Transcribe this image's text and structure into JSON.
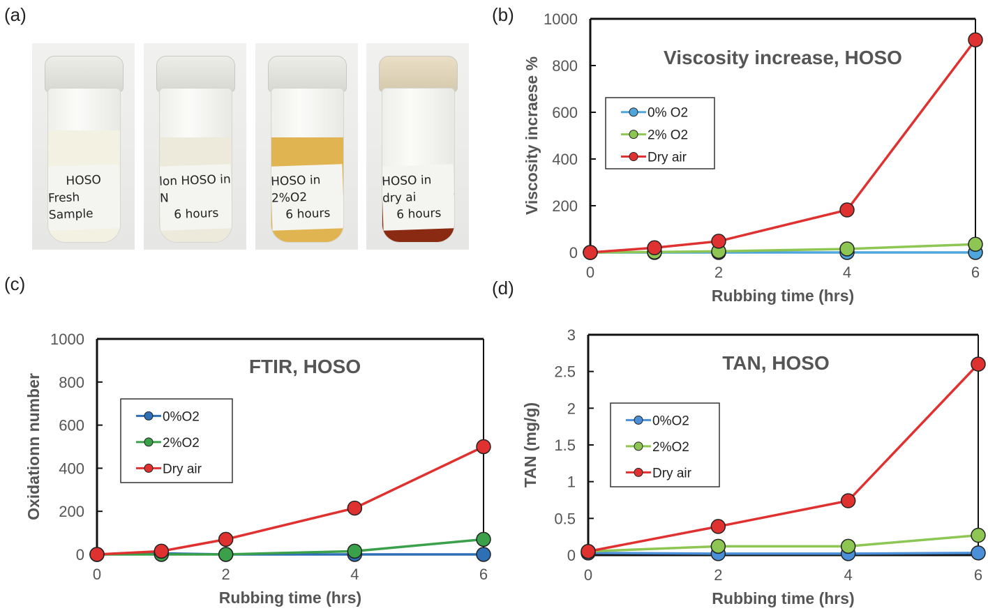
{
  "panels": {
    "a": "(a)",
    "b": "(b)",
    "c": "(c)",
    "d": "(d)"
  },
  "photo": {
    "vials": [
      {
        "line1": "HOSO",
        "line2": "Fresh Sample",
        "liquid_color": "#f3f1e2"
      },
      {
        "line1": "lon HOSO in N",
        "line2": "6 hours",
        "liquid_color": "#eeeadb"
      },
      {
        "line1": "HOSO in 2%O2",
        "line2": "6 hours",
        "liquid_color": "#e0b451"
      },
      {
        "line1": "HOSO in dry ai",
        "line2": "6 hours",
        "liquid_color": "#8a2a12"
      }
    ]
  },
  "colors": {
    "blue": "#4ea6dc",
    "blue_c": "#2f6fb5",
    "green": "#8dc653",
    "green_c": "#3aa14a",
    "red": "#e03131"
  },
  "chart_data": [
    {
      "id": "b",
      "type": "line",
      "title": "Viscosity increase, HOSO",
      "xlabel": "Rubbing time (hrs)",
      "ylabel": "Viscosity incraese %",
      "xlim": [
        0,
        6
      ],
      "ylim": [
        0,
        1000
      ],
      "xticks": [
        0,
        2,
        4,
        6
      ],
      "yticks": [
        0,
        200,
        400,
        600,
        800,
        1000
      ],
      "legend_position": "center-left",
      "series": [
        {
          "name": "0% O2",
          "color": "#4ea6dc",
          "x": [
            0,
            1,
            2,
            4,
            6
          ],
          "y": [
            0,
            0,
            0,
            0,
            0
          ]
        },
        {
          "name": "2% O2",
          "color": "#8dc653",
          "x": [
            0,
            1,
            2,
            4,
            6
          ],
          "y": [
            0,
            2,
            5,
            15,
            35
          ]
        },
        {
          "name": "Dry air",
          "color": "#e03131",
          "x": [
            0,
            1,
            2,
            4,
            6
          ],
          "y": [
            0,
            20,
            48,
            182,
            910
          ]
        }
      ]
    },
    {
      "id": "c",
      "type": "line",
      "title": "FTIR, HOSO",
      "xlabel": "Rubbing time (hrs)",
      "ylabel": "Oxidationn number",
      "xlim": [
        0,
        6
      ],
      "ylim": [
        0,
        1000
      ],
      "xticks": [
        0,
        2,
        4,
        6
      ],
      "yticks": [
        0,
        200,
        400,
        600,
        800,
        1000
      ],
      "legend_position": "center-left",
      "series": [
        {
          "name": "0%O2",
          "color": "#2f6fb5",
          "x": [
            0,
            1,
            2,
            4,
            6
          ],
          "y": [
            0,
            5,
            0,
            0,
            0
          ]
        },
        {
          "name": "2%O2",
          "color": "#3aa14a",
          "x": [
            0,
            1,
            2,
            4,
            6
          ],
          "y": [
            0,
            0,
            0,
            15,
            70
          ]
        },
        {
          "name": "Dry air",
          "color": "#e03131",
          "x": [
            0,
            1,
            2,
            4,
            6
          ],
          "y": [
            0,
            15,
            70,
            215,
            500
          ]
        }
      ]
    },
    {
      "id": "d",
      "type": "line",
      "title": "TAN, HOSO",
      "xlabel": "Rubbing time (hrs)",
      "ylabel": "TAN (mg/g)",
      "xlim": [
        0,
        6
      ],
      "ylim": [
        0,
        3
      ],
      "xticks": [
        0,
        2,
        4,
        6
      ],
      "yticks": [
        0,
        0.5,
        1,
        1.5,
        2,
        2.5,
        3
      ],
      "legend_position": "center-left",
      "series": [
        {
          "name": "0%O2",
          "color": "#4a8fd8",
          "x": [
            0,
            2,
            4,
            6
          ],
          "y": [
            0.03,
            0.02,
            0.02,
            0.03
          ]
        },
        {
          "name": "2%O2",
          "color": "#8dc653",
          "x": [
            0,
            2,
            4,
            6
          ],
          "y": [
            0.05,
            0.12,
            0.12,
            0.27
          ]
        },
        {
          "name": "Dry air",
          "color": "#e03131",
          "x": [
            0,
            2,
            4,
            6
          ],
          "y": [
            0.05,
            0.39,
            0.74,
            2.6
          ]
        }
      ]
    }
  ]
}
